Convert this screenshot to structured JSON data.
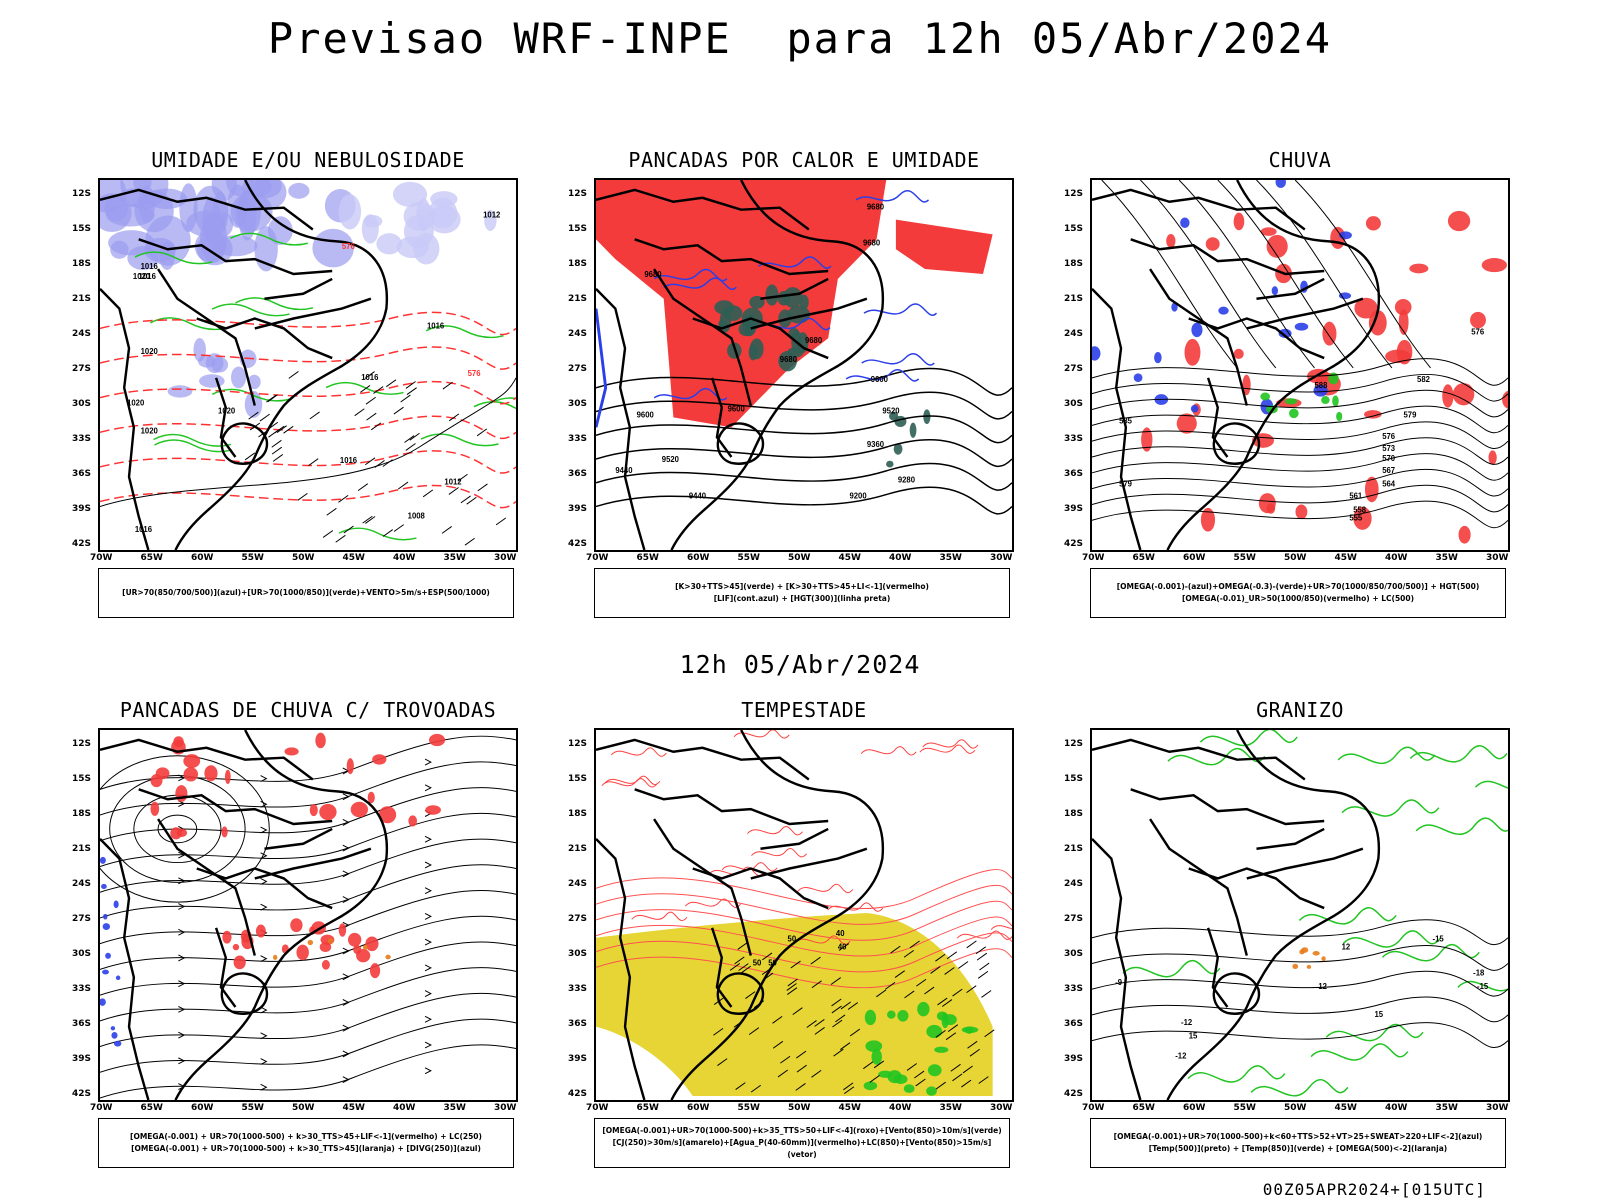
{
  "title": "Previsao WRF-INPE  para 12h 05/Abr/2024",
  "subtitle": "12h 05/Abr/2024",
  "footer": "00Z05APR2024+[015UTC]",
  "lat_labels": [
    "12S",
    "15S",
    "18S",
    "21S",
    "24S",
    "27S",
    "30S",
    "33S",
    "36S",
    "39S",
    "42S"
  ],
  "lon_labels": [
    "70W",
    "65W",
    "60W",
    "55W",
    "50W",
    "45W",
    "40W",
    "35W",
    "30W"
  ],
  "panels": [
    {
      "title": "UMIDADE E/OU NEBULOSIDADE",
      "legend": [
        "[UR>70(850/700/500)](azul)+[UR>70(1000/850)](verde)+VENTO>5m/s+ESP(500/1000)"
      ],
      "labels": [
        "1012",
        "1016",
        "1016",
        "1020",
        "1016",
        "1020",
        "1020",
        "1020",
        "1016",
        "1016",
        "1012",
        "1008",
        "1016",
        "1020",
        "576",
        "576"
      ]
    },
    {
      "title": "PANCADAS POR CALOR E UMIDADE",
      "legend": [
        "[K>30+TTS>45](verde) + [K>30+TTS>45+LI<-1](vermelho)",
        "[LIF](cont.azul) + [HGT(300)](linha preta)"
      ],
      "labels": [
        "9680",
        "9680",
        "9680",
        "9680",
        "9600",
        "9600",
        "9600",
        "9520",
        "9520",
        "9440",
        "9440",
        "9360",
        "9280",
        "9200",
        "9680"
      ]
    },
    {
      "title": "CHUVA",
      "legend": [
        "[OMEGA(-0.001)-(azul)+OMEGA(-0.3)-(verde)+UR>70(1000/850/700/500)] + HGT(500)",
        "[OMEGA(-0.01)_UR>50(1000/850)(vermelho) + LC(500)"
      ],
      "labels": [
        "582",
        "579",
        "576",
        "573",
        "570",
        "567",
        "564",
        "561",
        "558",
        "555",
        "576",
        "579",
        "585",
        "588"
      ]
    },
    {
      "title": "PANCADAS DE CHUVA C/ TROVOADAS",
      "legend": [
        "[OMEGA(-0.001) + UR>70(1000-500) + k>30_TTS>45+LIF<-1](vermelho) + LC(250)",
        "[OMEGA(-0.001) + UR>70(1000-500) + k>30_TTS>45](laranja) + [DIVG(250)](azul)"
      ],
      "labels": []
    },
    {
      "title": "TEMPESTADE",
      "legend": [
        "[OMEGA(-0.001)+UR>70(1000-500)+k>35_TTS>50+LIF<-4](roxo)+[Vento(850)>10m/s](verde)",
        "[CJ(250)>30m/s](amarelo)+[Agua_P(40-60mm)](vermelho)+LC(850)+[Vento(850)>15m/s](vetor)"
      ],
      "labels": [
        "50",
        "50",
        "40",
        "50",
        "40"
      ]
    },
    {
      "title": "GRANIZO",
      "legend": [
        "[OMEGA(-0.001)+UR>70(1000-500)+k<60+TTS>52+VT>25+SWEAT>220+LIF<-2](azul)",
        "[Temp(500)](preto) + [Temp(850)](verde) + [OMEGA(500)<-2](laranja)"
      ],
      "labels": [
        "-9",
        "-12",
        "-12",
        "-15",
        "-15",
        "-18",
        "12",
        "12",
        "15",
        "15"
      ]
    }
  ]
}
